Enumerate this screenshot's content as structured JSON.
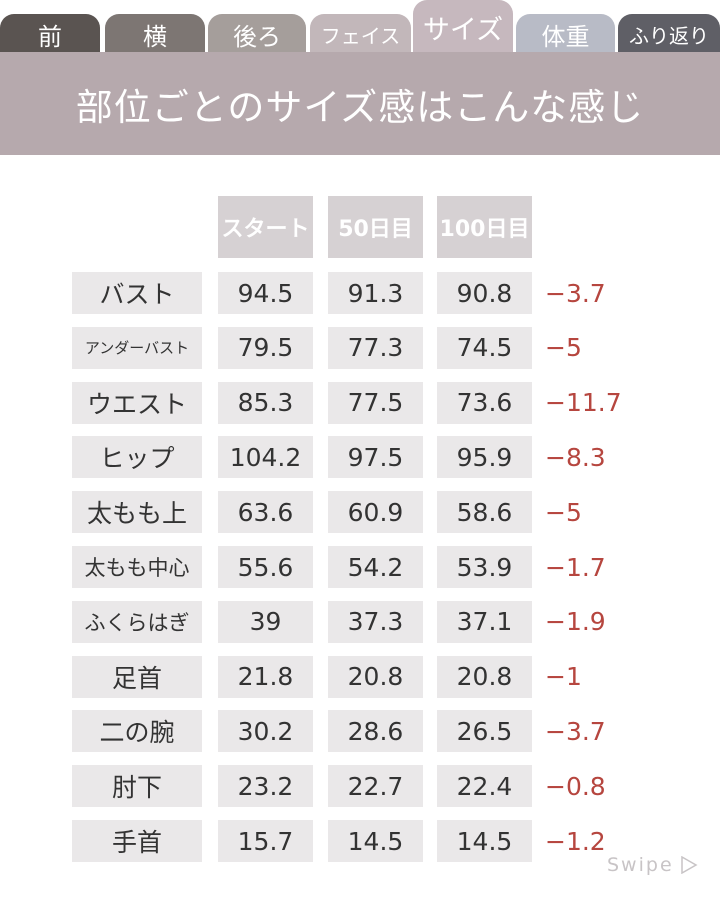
{
  "tabs": [
    "前",
    "横",
    "後ろ",
    "フェイス",
    "サイズ",
    "体重",
    "ふり返り"
  ],
  "title": "部位ごとのサイズ感はこんな感じ",
  "table": {
    "header": [
      "スタート",
      "50日目",
      "100日目"
    ],
    "rows": [
      {
        "label": "バスト",
        "values": [
          94.5,
          91.3,
          90.8
        ],
        "diff": "−3.7"
      },
      {
        "label": "アンダーバスト",
        "values": [
          79.5,
          77.3,
          74.5
        ],
        "diff": "−5"
      },
      {
        "label": "ウエスト",
        "values": [
          85.3,
          77.5,
          73.6
        ],
        "diff": "−11.7"
      },
      {
        "label": "ヒップ",
        "values": [
          104.2,
          97.5,
          95.9
        ],
        "diff": "−8.3"
      },
      {
        "label": "太もも上",
        "values": [
          63.6,
          60.9,
          58.6
        ],
        "diff": "−5"
      },
      {
        "label": "太もも中心",
        "values": [
          55.6,
          54.2,
          53.9
        ],
        "diff": "−1.7"
      },
      {
        "label": "ふくらはぎ",
        "values": [
          39,
          37.3,
          37.1
        ],
        "diff": "−1.9"
      },
      {
        "label": "足首",
        "values": [
          21.8,
          20.8,
          20.8
        ],
        "diff": "−1"
      },
      {
        "label": "二の腕",
        "values": [
          30.2,
          28.6,
          26.5
        ],
        "diff": "−3.7"
      },
      {
        "label": "肘下",
        "values": [
          23.2,
          22.7,
          22.4
        ],
        "diff": "−0.8"
      },
      {
        "label": "手首",
        "values": [
          15.7,
          14.5,
          14.5
        ],
        "diff": "−1.2"
      }
    ]
  },
  "swipe": "Swipe"
}
